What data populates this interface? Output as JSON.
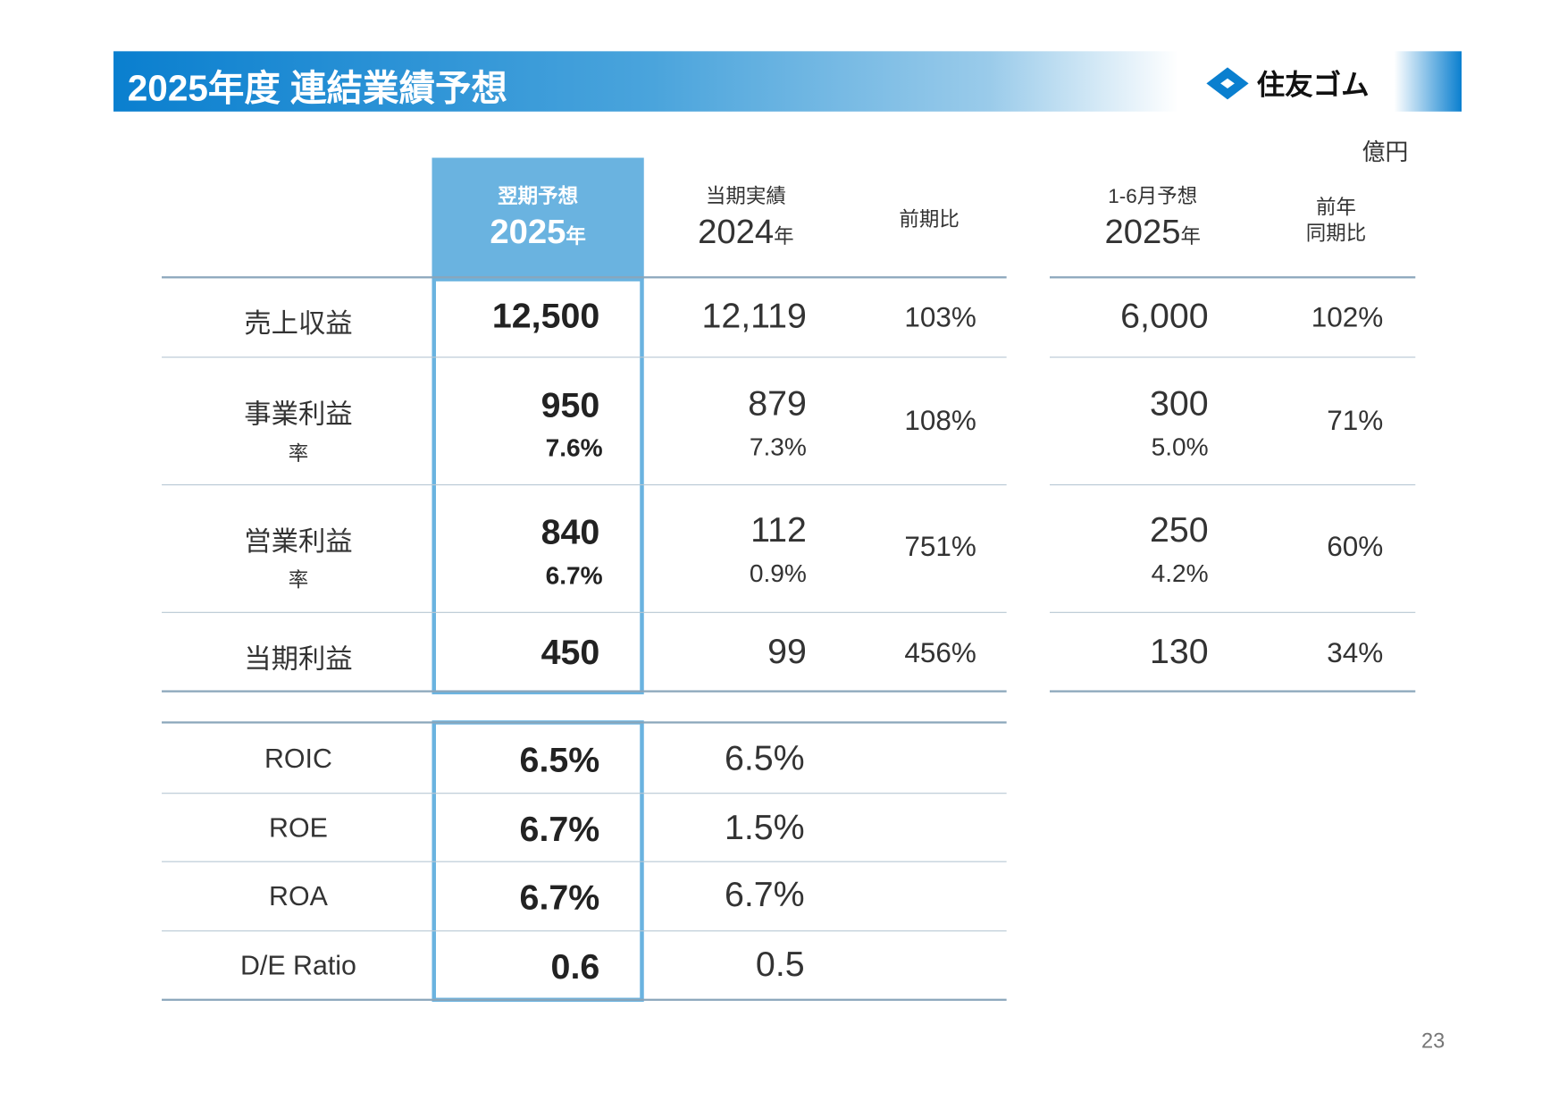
{
  "title": "2025年度 連結業績予想",
  "logo_text": "住友ゴム",
  "unit": "億円",
  "headers": {
    "forecast": {
      "line1": "翌期予想",
      "year": "2025",
      "suffix": "年"
    },
    "actual": {
      "line1": "当期実績",
      "year": "2024",
      "suffix": "年"
    },
    "yoy": "前期比",
    "h1": {
      "line1": "1-6月予想",
      "year": "2025",
      "suffix": "年"
    },
    "h1_yoy": {
      "line1": "前年",
      "line2": "同期比"
    }
  },
  "rows": [
    {
      "label": "売上収益",
      "forecast": "12,500",
      "actual": "12,119",
      "yoy": "103%",
      "h1": "6,000",
      "h1_yoy": "102%"
    },
    {
      "label": "事業利益",
      "sub": "率",
      "forecast": "950",
      "forecast_rate": "7.6%",
      "actual": "879",
      "actual_rate": "7.3%",
      "yoy": "108%",
      "h1": "300",
      "h1_rate": "5.0%",
      "h1_yoy": "71%"
    },
    {
      "label": "営業利益",
      "sub": "率",
      "forecast": "840",
      "forecast_rate": "6.7%",
      "actual": "112",
      "actual_rate": "0.9%",
      "yoy": "751%",
      "h1": "250",
      "h1_rate": "4.2%",
      "h1_yoy": "60%"
    },
    {
      "label": "当期利益",
      "forecast": "450",
      "actual": "99",
      "yoy": "456%",
      "h1": "130",
      "h1_yoy": "34%"
    }
  ],
  "ratios": [
    {
      "label": "ROIC",
      "forecast": "6.5%",
      "actual": "6.5%"
    },
    {
      "label": "ROE",
      "forecast": "6.7%",
      "actual": "1.5%"
    },
    {
      "label": "ROA",
      "forecast": "6.7%",
      "actual": "6.7%"
    },
    {
      "label": "D/E Ratio",
      "forecast": "0.6",
      "actual": "0.5"
    }
  ],
  "page_number": "23",
  "colors": {
    "brand": "#0a7fcf",
    "highlight": "#6ab3e0"
  }
}
